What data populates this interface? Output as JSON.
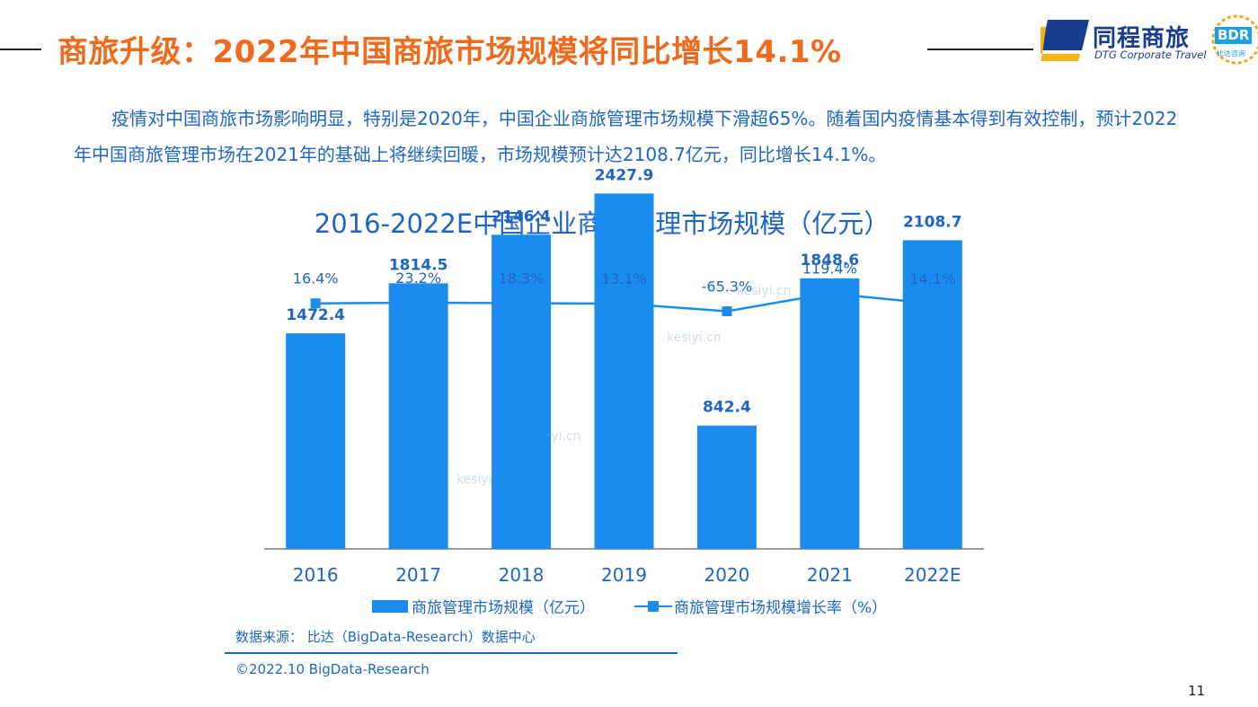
{
  "header": {
    "title": "商旅升级：2022年中国商旅市场规模将同比增长14.1%",
    "logo_cn": "同程商旅",
    "logo_en": "DTG Corporate Travel",
    "badge_text": "BDR",
    "badge_sub": "比达咨询"
  },
  "body_text": {
    "paragraph": "疫情对中国商旅市场影响明显，特别是2020年，中国企业商旅管理市场规模下滑超65%。随着国内疫情基本得到有效控制，预计2022年中国商旅管理市场在2021年的基础上将继续回暖，市场规模预计达2108.7亿元，同比增长14.1%。"
  },
  "chart_data": {
    "type": "bar",
    "title": "2016-2022E中国企业商旅管理市场规模（亿元）",
    "categories": [
      "2016",
      "2017",
      "2018",
      "2019",
      "2020",
      "2021",
      "2022E"
    ],
    "series": [
      {
        "name": "商旅管理市场规模（亿元）",
        "type": "bar",
        "values": [
          1472.4,
          1814.5,
          2146.4,
          2427.9,
          842.4,
          1848.6,
          2108.7
        ],
        "labels": [
          "1472.4",
          "1814.5",
          "2146.4",
          "2427.9",
          "842.4",
          "1848.6",
          "2108.7"
        ]
      },
      {
        "name": "商旅管理市场规模增长率（%）",
        "type": "line",
        "values": [
          16.4,
          23.2,
          18.3,
          13.1,
          -65.3,
          119.4,
          14.1
        ],
        "labels": [
          "16.4%",
          "23.2%",
          "18.3%",
          "13.1%",
          "-65.3%",
          "119.4%",
          "14.1%"
        ]
      }
    ],
    "legend_position": "bottom",
    "grid": false
  },
  "footer": {
    "source": "数据来源： 比达（BigData-Research）数据中心",
    "copyright": "©2022.10 BigData-Research",
    "page_number": "11"
  },
  "watermark": "kesiyi.cn",
  "colors": {
    "title_orange": "#f06a1c",
    "text_blue": "#1f66c2",
    "bar_blue": "#1a8cf0",
    "logo_navy": "#1a3c8c",
    "badge_blue": "#1aa0e6"
  }
}
